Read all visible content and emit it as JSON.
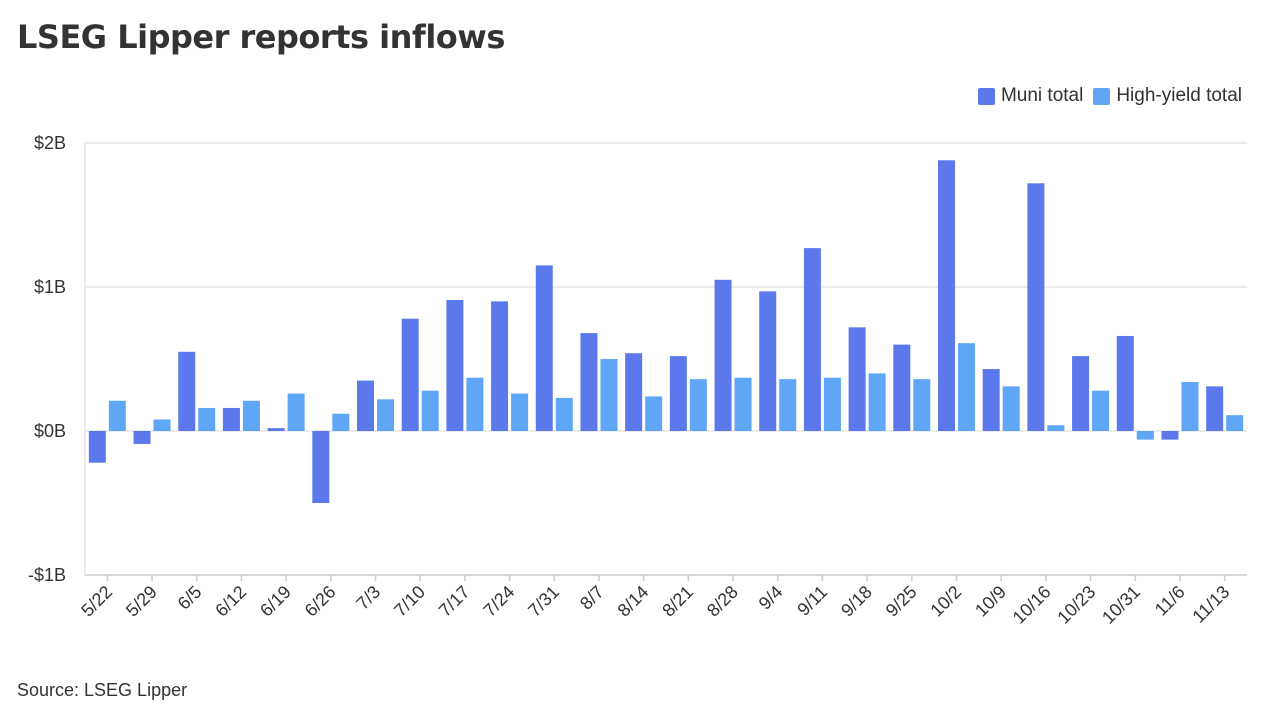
{
  "title": "LSEG Lipper reports inflows",
  "source": "Source: LSEG Lipper",
  "colors": {
    "muni": "#5b79ea",
    "high_yield": "#5fa6f7",
    "grid": "#e6e6e6",
    "axis": "#cccccc",
    "text": "#333333"
  },
  "chart_data": {
    "type": "bar",
    "title": "LSEG Lipper reports inflows",
    "xlabel": "",
    "ylabel": "",
    "ylim": [
      -1,
      2
    ],
    "y_unit": "$B",
    "yticks": [
      {
        "value": 2,
        "label": "$2B"
      },
      {
        "value": 1,
        "label": "$1B"
      },
      {
        "value": 0,
        "label": "$0B"
      },
      {
        "value": -1,
        "label": "-$1B"
      }
    ],
    "categories": [
      "5/22",
      "5/29",
      "6/5",
      "6/12",
      "6/19",
      "6/26",
      "7/3",
      "7/10",
      "7/17",
      "7/24",
      "7/31",
      "8/7",
      "8/14",
      "8/21",
      "8/28",
      "9/4",
      "9/11",
      "9/18",
      "9/25",
      "10/2",
      "10/9",
      "10/16",
      "10/23",
      "10/31",
      "11/6",
      "11/13"
    ],
    "series": [
      {
        "name": "Muni total",
        "color": "#5b79ea",
        "values": [
          -0.22,
          -0.09,
          0.55,
          0.16,
          0.02,
          -0.5,
          0.35,
          0.78,
          0.91,
          0.9,
          1.15,
          0.68,
          0.54,
          0.52,
          1.05,
          0.97,
          1.27,
          0.72,
          0.6,
          1.88,
          0.43,
          1.72,
          0.52,
          0.66,
          -0.06,
          0.31
        ]
      },
      {
        "name": "High-yield total",
        "color": "#5fa6f7",
        "values": [
          0.21,
          0.08,
          0.16,
          0.21,
          0.26,
          0.12,
          0.22,
          0.28,
          0.37,
          0.26,
          0.23,
          0.5,
          0.24,
          0.36,
          0.37,
          0.36,
          0.37,
          0.4,
          0.36,
          0.61,
          0.31,
          0.04,
          0.28,
          -0.06,
          0.34,
          0.11
        ]
      }
    ],
    "grid": true,
    "legend": "top-right"
  }
}
